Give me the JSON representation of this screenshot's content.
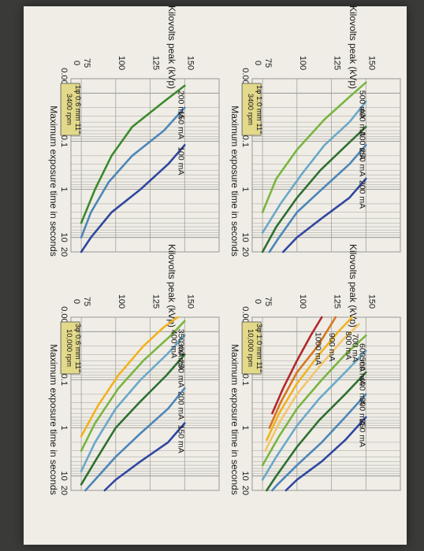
{
  "colors": {
    "paper": "#efede6",
    "grid": "#9a9893",
    "box": "#e3d98a",
    "text": "#1a1a1a"
  },
  "chart_data": [
    {
      "type": "line",
      "ylabel": "Kilovolts peak (kVp)",
      "xlabel": "Maximum exposure time in seconds",
      "y_ticks": [
        "0",
        "75",
        "100",
        "125",
        "150"
      ],
      "x_ticks": [
        "0.005",
        ".01",
        "0.1",
        "1",
        "10",
        "20"
      ],
      "x_scale": "log",
      "box": [
        "3400 rpm",
        "1φ 0.6 mm 11°"
      ],
      "series": [
        {
          "name": "100 mA",
          "color": "#2f47a0",
          "points": [
            [
              0.12,
              150
            ],
            [
              0.3,
              138
            ],
            [
              1,
              118
            ],
            [
              3,
              97
            ],
            [
              10,
              82
            ],
            [
              20,
              75
            ]
          ]
        },
        {
          "name": "150 mA",
          "color": "#4d86b8",
          "points": [
            [
              0.02,
              150
            ],
            [
              0.06,
              135
            ],
            [
              0.2,
              112
            ],
            [
              0.7,
              95
            ],
            [
              3,
              82
            ],
            [
              10,
              75
            ]
          ]
        },
        {
          "name": "200 mA",
          "color": "#3b8a2e",
          "points": [
            [
              0.007,
              150
            ],
            [
              0.015,
              135
            ],
            [
              0.05,
              112
            ],
            [
              0.2,
              97
            ],
            [
              1,
              85
            ],
            [
              5,
              75
            ]
          ]
        }
      ]
    },
    {
      "type": "line",
      "ylabel": "Kilovolts peak (kVp)",
      "xlabel": "Maximum exposure time in seconds",
      "y_ticks": [
        "0",
        "75",
        "100",
        "125",
        "150"
      ],
      "x_ticks": [
        "0.005",
        ".01",
        "0.1",
        "1",
        "10",
        "20"
      ],
      "x_scale": "log",
      "box": [
        "3400 rpm",
        "1φ 1.0 mm 11°"
      ],
      "series": [
        {
          "name": "200 mA",
          "color": "#2f47a0",
          "points": [
            [
              0.6,
              150
            ],
            [
              1.5,
              138
            ],
            [
              4,
              118
            ],
            [
              10,
              100
            ],
            [
              20,
              90
            ]
          ]
        },
        {
          "name": "250 mA",
          "color": "#4d86b8",
          "points": [
            [
              0.12,
              150
            ],
            [
              0.3,
              138
            ],
            [
              1,
              118
            ],
            [
              3,
              100
            ],
            [
              10,
              87
            ],
            [
              20,
              80
            ]
          ]
        },
        {
          "name": "300 mA",
          "color": "#2e7030",
          "points": [
            [
              0.05,
              150
            ],
            [
              0.12,
              136
            ],
            [
              0.4,
              117
            ],
            [
              1.5,
              100
            ],
            [
              6,
              85
            ],
            [
              20,
              75
            ]
          ]
        },
        {
          "name": "400 mA",
          "color": "#6aa8c8",
          "points": [
            [
              0.015,
              150
            ],
            [
              0.04,
              138
            ],
            [
              0.12,
              120
            ],
            [
              0.5,
              103
            ],
            [
              2,
              88
            ],
            [
              8,
              75
            ]
          ]
        },
        {
          "name": "500 mA",
          "color": "#79b540",
          "points": [
            [
              0.006,
              150
            ],
            [
              0.012,
              138
            ],
            [
              0.035,
              120
            ],
            [
              0.15,
              100
            ],
            [
              0.6,
              85
            ],
            [
              3,
              75
            ]
          ]
        }
      ]
    },
    {
      "type": "line",
      "ylabel": "Kilovolts peak (kVp)",
      "xlabel": "Maximum exposure time in seconds",
      "y_ticks": [
        "0",
        "75",
        "100",
        "125",
        "150"
      ],
      "x_ticks": [
        "0.005",
        ".01",
        "0.1",
        "1",
        "10",
        "20"
      ],
      "x_scale": "log",
      "box": [
        "10,000 rpm",
        "3φ 0.6 mm 11°"
      ],
      "series": [
        {
          "name": "150 mA",
          "color": "#2f47a0",
          "points": [
            [
              0.8,
              150
            ],
            [
              2,
              138
            ],
            [
              5,
              118
            ],
            [
              12,
              100
            ],
            [
              20,
              92
            ]
          ]
        },
        {
          "name": "200 mA",
          "color": "#4d86b8",
          "points": [
            [
              0.15,
              150
            ],
            [
              0.4,
              138
            ],
            [
              1.3,
              118
            ],
            [
              4,
              100
            ],
            [
              12,
              85
            ],
            [
              20,
              78
            ]
          ]
        },
        {
          "name": "250 mA",
          "color": "#2e7030",
          "points": [
            [
              0.03,
              150
            ],
            [
              0.08,
              137
            ],
            [
              0.3,
              117
            ],
            [
              1,
              100
            ],
            [
              5,
              85
            ],
            [
              15,
              75
            ]
          ]
        },
        {
          "name": "300 mA",
          "color": "#6aa8c8",
          "points": [
            [
              0.012,
              150
            ],
            [
              0.03,
              137
            ],
            [
              0.1,
              118
            ],
            [
              0.4,
              100
            ],
            [
              2,
              85
            ],
            [
              8,
              75
            ]
          ]
        },
        {
          "name": "350 mA",
          "color": "#79b540",
          "points": [
            [
              0.006,
              150
            ],
            [
              0.012,
              140
            ],
            [
              0.04,
              120
            ],
            [
              0.15,
              102
            ],
            [
              0.8,
              85
            ],
            [
              3,
              75
            ]
          ]
        },
        {
          "name": "400 mA",
          "color": "#f2b21e",
          "points": [
            [
              0.005,
              145
            ],
            [
              0.008,
              135
            ],
            [
              0.02,
              120
            ],
            [
              0.08,
              102
            ],
            [
              0.35,
              87
            ],
            [
              1.5,
              75
            ]
          ]
        }
      ]
    },
    {
      "type": "line",
      "ylabel": "Kilovolts peak (kVp)",
      "xlabel": "Maximum exposure time in seconds",
      "y_ticks": [
        "0",
        "75",
        "100",
        "125",
        "150"
      ],
      "x_ticks": [
        "0.005",
        ".01",
        "0.1",
        "1",
        "10",
        "20"
      ],
      "x_scale": "log",
      "box": [
        "10,000 rpm",
        "3φ 1.0 mm 11°"
      ],
      "series": [
        {
          "name": "250 mA",
          "color": "#2f47a0",
          "points": [
            [
              0.6,
              150
            ],
            [
              1.8,
              135
            ],
            [
              5,
              118
            ],
            [
              12,
              100
            ],
            [
              20,
              92
            ]
          ]
        },
        {
          "name": "300 mA",
          "color": "#4d86b8",
          "points": [
            [
              0.2,
              150
            ],
            [
              0.6,
              135
            ],
            [
              2,
              118
            ],
            [
              6,
              100
            ],
            [
              16,
              85
            ],
            [
              20,
              82
            ]
          ]
        },
        {
          "name": "400 mA",
          "color": "#2e7030",
          "points": [
            [
              0.07,
              150
            ],
            [
              0.2,
              135
            ],
            [
              0.7,
              116
            ],
            [
              2.5,
              100
            ],
            [
              10,
              85
            ],
            [
              20,
              78
            ]
          ]
        },
        {
          "name": "500 mA",
          "color": "#6aa8c8",
          "points": [
            [
              0.025,
              150
            ],
            [
              0.07,
              135
            ],
            [
              0.25,
              116
            ],
            [
              0.9,
              100
            ],
            [
              4,
              85
            ],
            [
              12,
              75
            ]
          ]
        },
        {
          "name": "600 mA",
          "color": "#79b540",
          "points": [
            [
              0.012,
              150
            ],
            [
              0.03,
              135
            ],
            [
              0.1,
              118
            ],
            [
              0.4,
              100
            ],
            [
              1.5,
              87
            ],
            [
              6,
              75
            ]
          ]
        },
        {
          "name": "700 mA",
          "color": "#f4c56a",
          "points": [
            [
              0.007,
              145
            ],
            [
              0.015,
              133
            ],
            [
              0.05,
              117
            ],
            [
              0.2,
              100
            ],
            [
              0.8,
              87
            ],
            [
              3,
              77
            ]
          ]
        },
        {
          "name": "800 mA",
          "color": "#f2b21e",
          "points": [
            [
              0.005,
              140
            ],
            [
              0.01,
              130
            ],
            [
              0.03,
              116
            ],
            [
              0.12,
              100
            ],
            [
              0.5,
              87
            ],
            [
              1.8,
              78
            ]
          ]
        },
        {
          "name": "900 mA",
          "color": "#d8751f",
          "points": [
            [
              0.005,
              128
            ],
            [
              0.02,
              115
            ],
            [
              0.07,
              100
            ],
            [
              0.3,
              88
            ],
            [
              1,
              80
            ]
          ]
        },
        {
          "name": "1000 mA",
          "color": "#b0282c",
          "points": [
            [
              0.005,
              118
            ],
            [
              0.012,
              110
            ],
            [
              0.04,
              100
            ],
            [
              0.15,
              90
            ],
            [
              0.5,
              82
            ]
          ]
        }
      ]
    }
  ]
}
